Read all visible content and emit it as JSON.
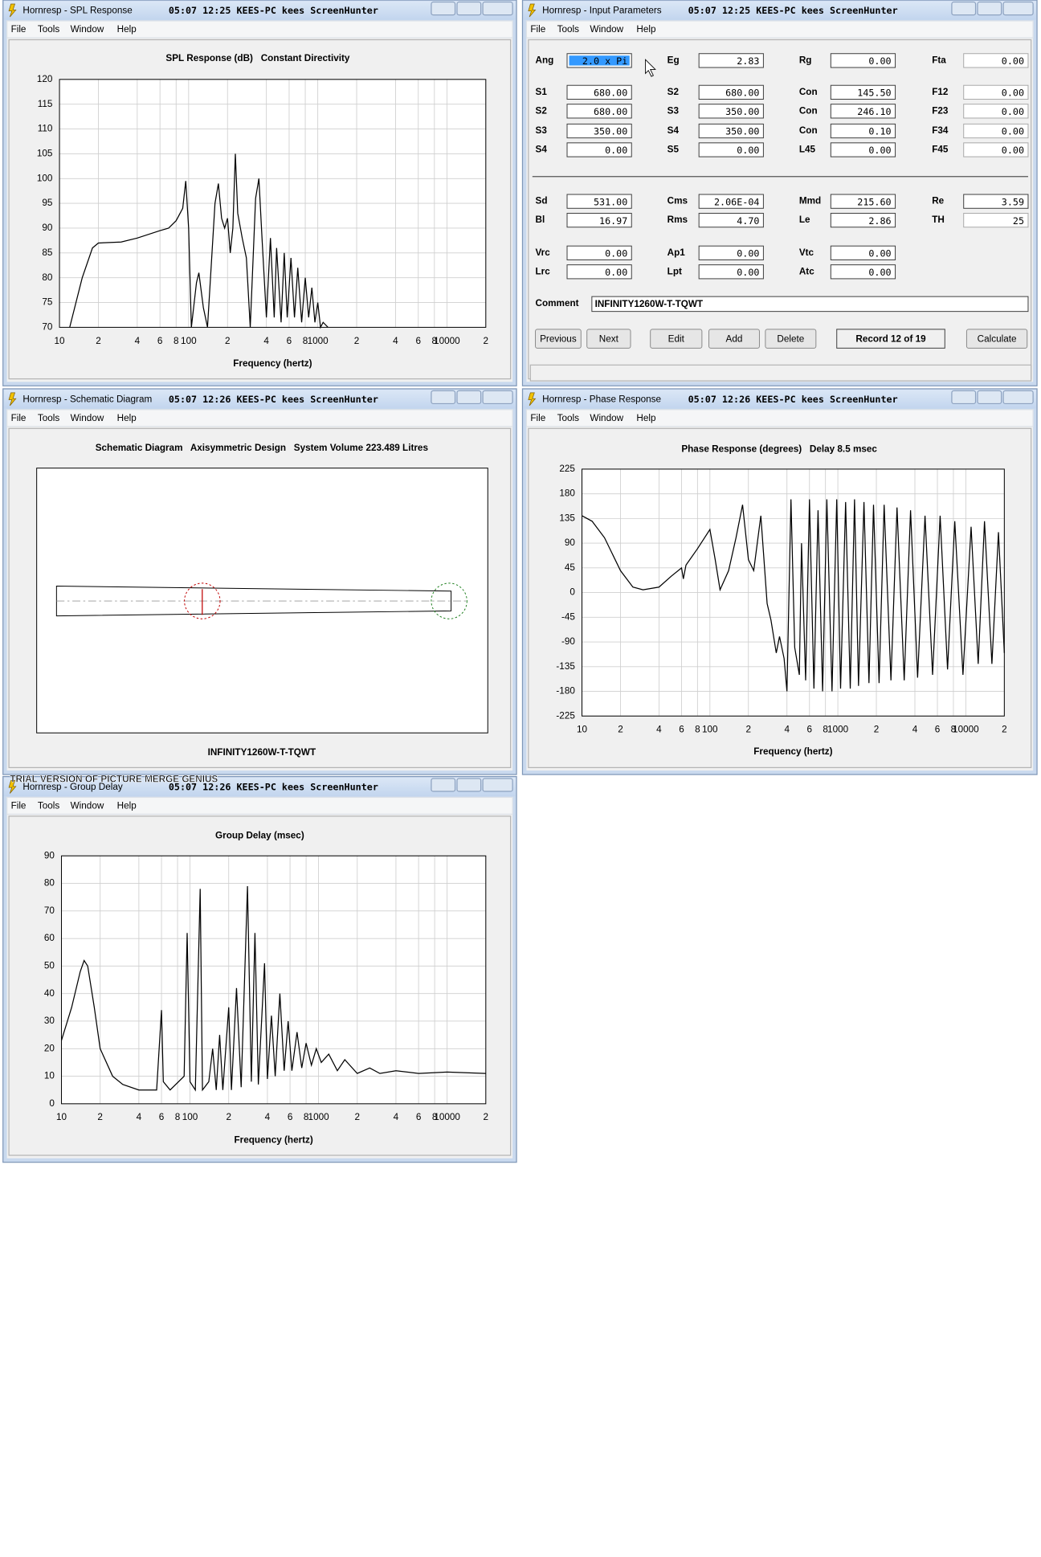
{
  "windows": [
    {
      "title": "Hornresp - SPL Response",
      "stamp": "05:07 12:25 KEES-PC kees ScreenHunter",
      "menu": [
        "File",
        "Tools",
        "Window",
        "Help"
      ]
    },
    {
      "title": "Hornresp - Input Parameters",
      "stamp": "05:07 12:25 KEES-PC kees ScreenHunter",
      "menu": [
        "File",
        "Tools",
        "Window",
        "Help"
      ]
    },
    {
      "title": "Hornresp - Schematic Diagram",
      "stamp": "05:07 12:26 KEES-PC kees ScreenHunter",
      "menu": [
        "File",
        "Tools",
        "Window",
        "Help"
      ]
    },
    {
      "title": "Hornresp - Phase Response",
      "stamp": "05:07 12:26 KEES-PC kees ScreenHunter",
      "menu": [
        "File",
        "Tools",
        "Window",
        "Help"
      ]
    },
    {
      "title": "Hornresp - Group Delay",
      "stamp": "05:07 12:26 KEES-PC kees ScreenHunter",
      "menu": [
        "File",
        "Tools",
        "Window",
        "Help"
      ]
    }
  ],
  "chart_data": [
    {
      "type": "line",
      "title": "SPL Response (dB)   Constant Directivity",
      "x_label": "Frequency (hertz)",
      "color": "#000000",
      "log_x": true,
      "grid": true,
      "xlim": [
        10,
        20000
      ],
      "xticks": [
        10,
        {
          "value": 20,
          "label": "2"
        },
        {
          "value": 40,
          "label": "4"
        },
        {
          "value": 60,
          "label": "6"
        },
        {
          "value": 80,
          "label": "8"
        },
        100,
        {
          "value": 200,
          "label": "2"
        },
        {
          "value": 400,
          "label": "4"
        },
        {
          "value": 600,
          "label": "6"
        },
        {
          "value": 800,
          "label": "8"
        },
        1000,
        {
          "value": 2000,
          "label": "2"
        },
        {
          "value": 4000,
          "label": "4"
        },
        {
          "value": 6000,
          "label": "6"
        },
        {
          "value": 8000,
          "label": "8"
        },
        10000,
        {
          "value": 20000,
          "label": "2"
        }
      ],
      "ylim": [
        70,
        120
      ],
      "yticks": [
        70,
        75,
        80,
        85,
        90,
        95,
        100,
        105,
        110,
        115,
        120
      ],
      "x": [
        12,
        15,
        18,
        20,
        30,
        40,
        60,
        70,
        80,
        90,
        95,
        100,
        105,
        115,
        120,
        130,
        140,
        160,
        170,
        180,
        190,
        200,
        210,
        220,
        230,
        240,
        260,
        280,
        300,
        330,
        350,
        370,
        400,
        430,
        460,
        480,
        520,
        550,
        580,
        620,
        660,
        700,
        750,
        800,
        850,
        900,
        950,
        1000,
        1050,
        1100,
        1200
      ],
      "values": [
        70,
        80,
        86,
        87,
        87.2,
        88,
        89.5,
        90,
        91.5,
        94,
        99.5,
        90,
        70,
        79,
        81,
        74,
        70,
        95,
        99,
        92,
        90,
        92,
        85,
        90,
        105,
        93,
        88,
        84,
        70,
        96,
        100,
        88,
        72,
        88,
        72,
        86,
        71,
        85,
        72,
        84,
        72,
        82,
        71,
        80,
        72,
        78,
        71,
        75,
        70,
        71,
        70
      ]
    },
    {
      "type": "line",
      "title": "Phase Response (degrees)   Delay 8.5 msec",
      "x_label": "Frequency (hertz)",
      "color": "#000000",
      "log_x": true,
      "grid": true,
      "xlim": [
        10,
        20000
      ],
      "xticks": [
        10,
        {
          "value": 20,
          "label": "2"
        },
        {
          "value": 40,
          "label": "4"
        },
        {
          "value": 60,
          "label": "6"
        },
        {
          "value": 80,
          "label": "8"
        },
        100,
        {
          "value": 200,
          "label": "2"
        },
        {
          "value": 400,
          "label": "4"
        },
        {
          "value": 600,
          "label": "6"
        },
        {
          "value": 800,
          "label": "8"
        },
        1000,
        {
          "value": 2000,
          "label": "2"
        },
        {
          "value": 4000,
          "label": "4"
        },
        {
          "value": 6000,
          "label": "6"
        },
        {
          "value": 8000,
          "label": "8"
        },
        10000,
        {
          "value": 20000,
          "label": "2"
        }
      ],
      "ylim": [
        -225,
        225
      ],
      "yticks": [
        -225,
        -180,
        -135,
        -90,
        -45,
        0,
        45,
        90,
        135,
        180,
        225
      ],
      "x": [
        10,
        12,
        15,
        20,
        25,
        30,
        40,
        50,
        60,
        62,
        65,
        80,
        100,
        110,
        120,
        140,
        160,
        180,
        200,
        220,
        250,
        280,
        300,
        330,
        350,
        380,
        400,
        430,
        460,
        500,
        520,
        560,
        600,
        650,
        700,
        760,
        820,
        900,
        980,
        1050,
        1150,
        1250,
        1350,
        1450,
        1600,
        1750,
        1900,
        2100,
        2300,
        2600,
        2900,
        3300,
        3700,
        4200,
        4800,
        5500,
        6300,
        7200,
        8200,
        9500,
        11000,
        12500,
        14000,
        16000,
        18000,
        20000
      ],
      "values": [
        140,
        130,
        100,
        40,
        10,
        5,
        10,
        30,
        45,
        25,
        50,
        80,
        115,
        60,
        5,
        40,
        100,
        160,
        60,
        40,
        140,
        -20,
        -50,
        -110,
        -80,
        -120,
        -180,
        170,
        -100,
        -150,
        90,
        -160,
        170,
        -175,
        150,
        -180,
        170,
        -180,
        170,
        -175,
        165,
        -175,
        170,
        -170,
        165,
        -165,
        160,
        -165,
        160,
        -160,
        155,
        -160,
        150,
        -155,
        140,
        -150,
        140,
        -140,
        130,
        -150,
        120,
        -130,
        130,
        -130,
        110,
        -110
      ]
    },
    {
      "type": "line",
      "title": "Group Delay (msec)",
      "x_label": "Frequency (hertz)",
      "color": "#000000",
      "log_x": true,
      "grid": true,
      "xlim": [
        10,
        20000
      ],
      "xticks": [
        10,
        {
          "value": 20,
          "label": "2"
        },
        {
          "value": 40,
          "label": "4"
        },
        {
          "value": 60,
          "label": "6"
        },
        {
          "value": 80,
          "label": "8"
        },
        100,
        {
          "value": 200,
          "label": "2"
        },
        {
          "value": 400,
          "label": "4"
        },
        {
          "value": 600,
          "label": "6"
        },
        {
          "value": 800,
          "label": "8"
        },
        1000,
        {
          "value": 2000,
          "label": "2"
        },
        {
          "value": 4000,
          "label": "4"
        },
        {
          "value": 6000,
          "label": "6"
        },
        {
          "value": 8000,
          "label": "8"
        },
        10000,
        {
          "value": 20000,
          "label": "2"
        }
      ],
      "ylim": [
        0,
        90
      ],
      "yticks": [
        0,
        10,
        20,
        30,
        40,
        50,
        60,
        70,
        80,
        90
      ],
      "x": [
        10,
        12,
        14,
        15,
        16,
        18,
        20,
        25,
        30,
        40,
        55,
        60,
        62,
        70,
        90,
        95,
        100,
        110,
        120,
        125,
        140,
        150,
        160,
        170,
        180,
        200,
        210,
        230,
        250,
        280,
        300,
        320,
        340,
        380,
        400,
        430,
        460,
        500,
        540,
        580,
        620,
        680,
        740,
        800,
        880,
        960,
        1050,
        1200,
        1400,
        1600,
        2000,
        2500,
        3000,
        4000,
        6000,
        10000,
        20000
      ],
      "values": [
        23,
        35,
        48,
        52,
        50,
        35,
        20,
        10,
        7,
        5,
        5,
        34,
        8,
        5,
        10,
        62,
        8,
        5,
        78,
        5,
        8,
        20,
        5,
        25,
        5,
        35,
        5,
        42,
        6,
        79,
        8,
        62,
        7,
        51,
        9,
        32,
        10,
        40,
        12,
        30,
        12,
        26,
        13,
        22,
        14,
        20,
        15,
        18,
        12,
        16,
        11,
        13,
        11,
        12,
        11,
        11.5,
        11
      ]
    }
  ],
  "input_parameters": {
    "rows": [
      [
        {
          "label": "Ang",
          "value": "2.0 x Pi"
        },
        {
          "label": "Eg",
          "value": "2.83"
        },
        {
          "label": "Rg",
          "value": "0.00"
        },
        {
          "label": "Fta",
          "value": "0.00"
        }
      ],
      [
        {
          "label": "S1",
          "value": "680.00"
        },
        {
          "label": "S2",
          "value": "680.00"
        },
        {
          "label": "Con",
          "value": "145.50"
        },
        {
          "label": "F12",
          "value": "0.00"
        }
      ],
      [
        {
          "label": "S2",
          "value": "680.00"
        },
        {
          "label": "S3",
          "value": "350.00"
        },
        {
          "label": "Con",
          "value": "246.10"
        },
        {
          "label": "F23",
          "value": "0.00"
        }
      ],
      [
        {
          "label": "S3",
          "value": "350.00"
        },
        {
          "label": "S4",
          "value": "350.00"
        },
        {
          "label": "Con",
          "value": "0.10"
        },
        {
          "label": "F34",
          "value": "0.00"
        }
      ],
      [
        {
          "label": "S4",
          "value": "0.00"
        },
        {
          "label": "S5",
          "value": "0.00"
        },
        {
          "label": "L45",
          "value": "0.00"
        },
        {
          "label": "F45",
          "value": "0.00"
        }
      ],
      [
        {
          "label": "Sd",
          "value": "531.00"
        },
        {
          "label": "Cms",
          "value": "2.06E-04"
        },
        {
          "label": "Mmd",
          "value": "215.60"
        },
        {
          "label": "Re",
          "value": "3.59"
        }
      ],
      [
        {
          "label": "Bl",
          "value": "16.97"
        },
        {
          "label": "Rms",
          "value": "4.70"
        },
        {
          "label": "Le",
          "value": "2.86"
        },
        {
          "label": "TH",
          "value": "25"
        }
      ],
      [
        {
          "label": "Vrc",
          "value": "0.00"
        },
        {
          "label": "Ap1",
          "value": "0.00"
        },
        {
          "label": "Vtc",
          "value": "0.00"
        }
      ],
      [
        {
          "label": "Lrc",
          "value": "0.00"
        },
        {
          "label": "Lpt",
          "value": "0.00"
        },
        {
          "label": "Atc",
          "value": "0.00"
        }
      ]
    ],
    "comment": {
      "label": "Comment",
      "value": "INFINITY1260W-T-TQWT"
    },
    "buttons": [
      "Previous",
      "Next",
      "Edit",
      "Add",
      "Delete",
      "Record 12 of 19",
      "Calculate"
    ]
  },
  "schematic": {
    "title": "Schematic Diagram   Axisymmetric Design   System Volume 223.489 Litres",
    "label": "INFINITY1260W-T-TQWT"
  },
  "watermark": "TRIAL VERSION OF PICTURE MERGE GENIUS"
}
